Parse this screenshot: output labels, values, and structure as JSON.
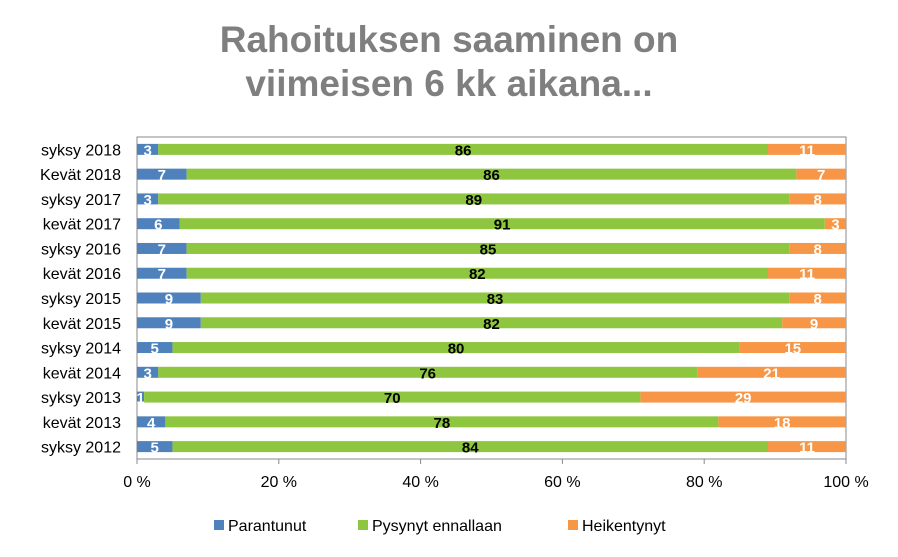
{
  "chart_data": {
    "type": "bar",
    "orientation": "horizontal",
    "stacked": "percent",
    "title_lines": [
      "Rahoituksen saaminen on",
      "viimeisen 6 kk aikana..."
    ],
    "categories": [
      "syksy 2018",
      "Kevät 2018",
      "syksy 2017",
      "kevät 2017",
      "syksy 2016",
      "kevät 2016",
      "syksy 2015",
      "kevät 2015",
      "syksy 2014",
      "kevät 2014",
      "syksy 2013",
      "kevät 2013",
      "syksy 2012"
    ],
    "series": [
      {
        "name": "Parantunut",
        "color": "#4f81bd",
        "values": [
          3,
          7,
          3,
          6,
          7,
          7,
          9,
          9,
          5,
          3,
          1,
          4,
          5
        ]
      },
      {
        "name": "Pysynyt ennallaan",
        "color": "#8ec63f",
        "values": [
          86,
          86,
          89,
          91,
          85,
          82,
          83,
          82,
          80,
          76,
          70,
          78,
          84
        ]
      },
      {
        "name": "Heikentynyt",
        "color": "#f79646",
        "values": [
          11,
          7,
          8,
          3,
          8,
          11,
          8,
          9,
          15,
          21,
          29,
          18,
          11
        ]
      }
    ],
    "xticks": [
      "0 %",
      "20 %",
      "40 %",
      "60 %",
      "80 %",
      "100 %"
    ],
    "xlim": [
      0,
      100
    ],
    "legend_position": "bottom",
    "grid": false
  }
}
